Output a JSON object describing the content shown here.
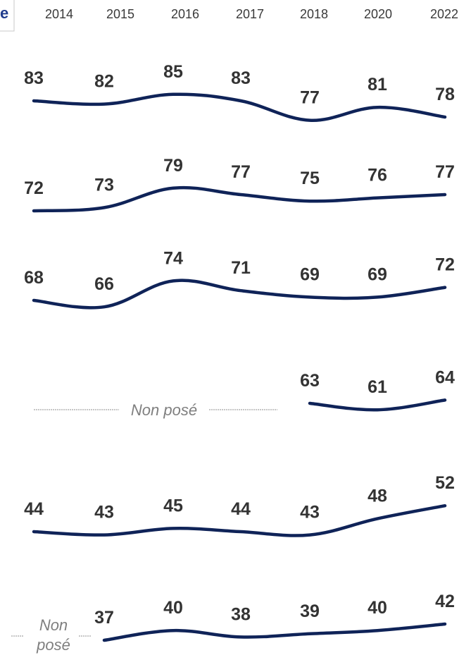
{
  "colors": {
    "line": "#0f2358",
    "text": "#333333",
    "muted": "#7f7f7f"
  },
  "corner_label": "e",
  "chart_data": {
    "type": "line",
    "x": [
      "2014",
      "2015",
      "2016",
      "2017",
      "2018",
      "2020",
      "2022"
    ],
    "series": [
      {
        "values": [
          83,
          82,
          85,
          83,
          77,
          81,
          78
        ]
      },
      {
        "values": [
          72,
          73,
          79,
          77,
          75,
          76,
          77
        ]
      },
      {
        "values": [
          68,
          66,
          74,
          71,
          69,
          69,
          72
        ]
      },
      {
        "values": [
          null,
          null,
          null,
          null,
          63,
          61,
          64
        ],
        "missing_label": "Non posé"
      },
      {
        "values": [
          44,
          43,
          45,
          44,
          43,
          48,
          52
        ]
      },
      {
        "values": [
          null,
          37,
          40,
          38,
          39,
          40,
          42
        ],
        "missing_label": "Non posé"
      }
    ]
  }
}
